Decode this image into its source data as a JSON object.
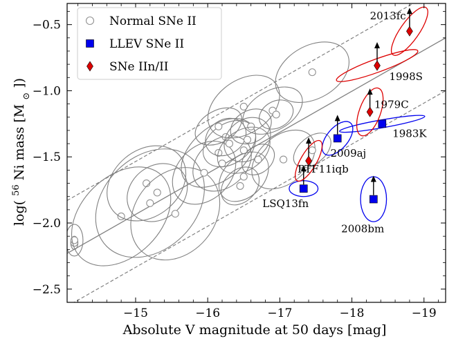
{
  "chart_data": {
    "type": "scatter",
    "xlabel": "Absolute V magnitude at 50 days [mag]",
    "ylabel_parts": [
      "log(",
      "56",
      "Ni mass [M",
      "⊙",
      "])"
    ],
    "xlim": [
      -14.05,
      -19.3
    ],
    "ylim": [
      -2.6,
      -0.34
    ],
    "x_ticks": [
      -15,
      -16,
      -17,
      -18,
      -19
    ],
    "x_tick_labels": [
      "−15",
      "−16",
      "−17",
      "−18",
      "−19"
    ],
    "y_ticks": [
      -2.5,
      -2.0,
      -1.5,
      -1.0,
      -0.5
    ],
    "y_tick_labels": [
      "−2.5",
      "−2.0",
      "−1.5",
      "−1.0",
      "−0.5"
    ],
    "grid": false,
    "legend_position": "top-left",
    "legend": [
      {
        "label": "Normal SNe II",
        "marker": "circle"
      },
      {
        "label": "LLEV SNe II",
        "marker": "square"
      },
      {
        "label": "SNe IIn/II",
        "marker": "diamond"
      }
    ],
    "colors": {
      "normal": "#808080",
      "llev": "#0000ee",
      "iin": "#dd0000",
      "text": "#000000"
    },
    "fit_line": {
      "x": [
        -14.05,
        -19.3
      ],
      "y": [
        -2.23,
        -0.6
      ]
    },
    "band_upper": {
      "x": [
        -14.05,
        -19.3
      ],
      "y": [
        -1.83,
        -0.2
      ]
    },
    "band_lower": {
      "x": [
        -14.05,
        -19.3
      ],
      "y": [
        -2.63,
        -1.0
      ]
    },
    "normal_sne": [
      {
        "x": -14.15,
        "y": -2.15,
        "rx": 0.05,
        "ry": 0.05,
        "angle": 0
      },
      {
        "x": -14.15,
        "y": -2.13,
        "rx": 0.12,
        "ry": 0.12,
        "angle": 0
      },
      {
        "x": -14.8,
        "y": -1.95,
        "rx": 0.8,
        "ry": 0.3,
        "angle": -45
      },
      {
        "x": -15.15,
        "y": -1.7,
        "rx": 0.6,
        "ry": 0.25,
        "angle": -40
      },
      {
        "x": -15.2,
        "y": -1.85,
        "rx": 0.85,
        "ry": 0.35,
        "angle": -45
      },
      {
        "x": -15.3,
        "y": -1.77,
        "rx": 0.45,
        "ry": 0.2,
        "angle": -40
      },
      {
        "x": -15.55,
        "y": -1.93,
        "rx": 0.7,
        "ry": 0.3,
        "angle": -50
      },
      {
        "x": -15.95,
        "y": -1.62,
        "rx": 0.5,
        "ry": 0.2,
        "angle": -45
      },
      {
        "x": -16.15,
        "y": -1.47,
        "rx": 0.6,
        "ry": 0.2,
        "angle": -40
      },
      {
        "x": -16.2,
        "y": -1.55,
        "rx": 0.45,
        "ry": 0.18,
        "angle": -40
      },
      {
        "x": -16.3,
        "y": -1.4,
        "rx": 0.4,
        "ry": 0.15,
        "angle": -35
      },
      {
        "x": -16.15,
        "y": -1.27,
        "rx": 0.35,
        "ry": 0.12,
        "angle": -30
      },
      {
        "x": -16.25,
        "y": -1.35,
        "rx": 0.3,
        "ry": 0.13,
        "angle": -35
      },
      {
        "x": -16.5,
        "y": -1.12,
        "rx": 0.55,
        "ry": 0.2,
        "angle": -35
      },
      {
        "x": -16.6,
        "y": -1.27,
        "rx": 0.3,
        "ry": 0.12,
        "angle": -30
      },
      {
        "x": -16.55,
        "y": -1.37,
        "rx": 0.35,
        "ry": 0.15,
        "angle": -40
      },
      {
        "x": -16.5,
        "y": -1.45,
        "rx": 0.4,
        "ry": 0.15,
        "angle": -35
      },
      {
        "x": -16.5,
        "y": -1.65,
        "rx": 0.4,
        "ry": 0.15,
        "angle": -45
      },
      {
        "x": -16.45,
        "y": -1.72,
        "rx": 0.3,
        "ry": 0.12,
        "angle": -45
      },
      {
        "x": -16.7,
        "y": -1.52,
        "rx": 0.25,
        "ry": 0.1,
        "angle": -40
      },
      {
        "x": -16.9,
        "y": -1.15,
        "rx": 0.45,
        "ry": 0.15,
        "angle": -30
      },
      {
        "x": -16.95,
        "y": -1.18,
        "rx": 0.25,
        "ry": 0.1,
        "angle": -30
      },
      {
        "x": -17.05,
        "y": -1.52,
        "rx": 0.5,
        "ry": 0.18,
        "angle": -40
      },
      {
        "x": -17.45,
        "y": -0.86,
        "rx": 0.55,
        "ry": 0.2,
        "angle": -30
      },
      {
        "x": -17.45,
        "y": -1.45,
        "rx": 0.3,
        "ry": 0.1,
        "angle": -40
      }
    ],
    "points": [
      {
        "name": "LSQ13fn",
        "group": "llev",
        "x": -17.33,
        "y": -1.74,
        "ellipse": {
          "rx": 0.2,
          "ry": 0.06,
          "angle": 0
        },
        "arrow": true
      },
      {
        "name": "2008bm",
        "group": "llev",
        "x": -18.3,
        "y": -1.82,
        "ellipse": {
          "rx": 0.18,
          "ry": 0.17,
          "angle": 0
        },
        "arrow": true
      },
      {
        "name": "2009aj",
        "group": "llev",
        "x": -17.8,
        "y": -1.36,
        "ellipse": {
          "rx": 0.28,
          "ry": 0.08,
          "angle": -50
        },
        "arrow": true
      },
      {
        "name": "1983K",
        "group": "llev",
        "x": -18.42,
        "y": -1.25,
        "ellipse": {
          "rx": 0.6,
          "ry": 0.03,
          "angle": -10
        },
        "arrow": false
      },
      {
        "name": "PTF11iqb",
        "group": "iin",
        "x": -17.4,
        "y": -1.53,
        "ellipse": {
          "rx": 0.32,
          "ry": 0.06,
          "angle": -60
        },
        "arrow": true
      },
      {
        "name": "1979C",
        "group": "iin",
        "x": -18.25,
        "y": -1.16,
        "ellipse": {
          "rx": 0.35,
          "ry": 0.08,
          "angle": -70
        },
        "arrow": true
      },
      {
        "name": "1998S",
        "group": "iin",
        "x": -18.35,
        "y": -0.81,
        "ellipse": {
          "rx": 0.6,
          "ry": 0.05,
          "angle": -20
        },
        "arrow": true
      },
      {
        "name": "2013fc",
        "group": "iin",
        "x": -18.8,
        "y": -0.55,
        "ellipse": {
          "rx": 0.4,
          "ry": 0.07,
          "angle": -55
        },
        "arrow": true
      }
    ],
    "point_labels": [
      {
        "name": "2013fc",
        "text": "2013fc",
        "x": -18.5,
        "y": -0.46,
        "anchor": "middle"
      },
      {
        "name": "1998S",
        "text": "1998S",
        "x": -18.75,
        "y": -0.92,
        "anchor": "middle"
      },
      {
        "name": "1979C",
        "text": "1979C",
        "x": -18.55,
        "y": -1.13,
        "anchor": "middle"
      },
      {
        "name": "1983K",
        "text": "1983K",
        "x": -18.8,
        "y": -1.35,
        "anchor": "middle"
      },
      {
        "name": "2009aj",
        "text": "2009aj",
        "x": -17.95,
        "y": -1.5,
        "anchor": "middle"
      },
      {
        "name": "PTF11iqb",
        "text": "PTF11iqb",
        "x": -17.6,
        "y": -1.62,
        "anchor": "middle"
      },
      {
        "name": "LSQ13fn",
        "text": "LSQ13fn",
        "x": -17.08,
        "y": -1.88,
        "anchor": "middle"
      },
      {
        "name": "2008bm",
        "text": "2008bm",
        "x": -18.15,
        "y": -2.07,
        "anchor": "middle"
      }
    ]
  }
}
